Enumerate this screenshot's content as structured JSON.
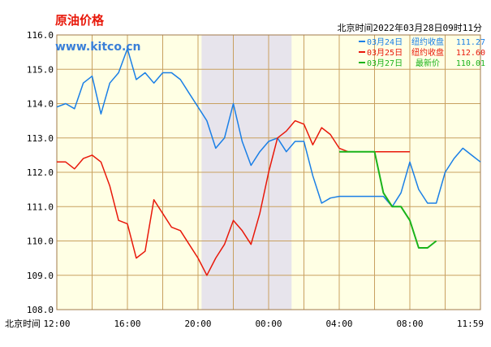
{
  "header": {
    "title": "原油价格",
    "watermark": "www.kitco.cn",
    "timestamp": "北京时间2022年03月28日09时11分"
  },
  "colors": {
    "background": "#ffffff",
    "plot_background": "#ffffe4",
    "grid": "#c8a060",
    "shade": "#e7e4ec",
    "title": "#e8180a",
    "watermark": "#3a7fd8",
    "march24": "#1a7fe6",
    "march25": "#e8180a",
    "march27": "#1ab31a"
  },
  "chart_data": {
    "type": "line",
    "title": "原油价格",
    "xlabel": "北京时间",
    "x_tick_labels": [
      "12:00",
      "16:00",
      "20:00",
      "00:00",
      "04:00",
      "08:00",
      "11:59"
    ],
    "x_tick_hours": [
      0,
      4,
      8,
      12,
      16,
      20,
      24
    ],
    "y_ticks": [
      "116.0",
      "115.0",
      "114.0",
      "113.0",
      "112.0",
      "111.0",
      "110.0",
      "109.0",
      "108.0"
    ],
    "ylim": [
      108.0,
      116.0
    ],
    "grid": true,
    "legend_position": "top-right",
    "shaded_band": [
      8.2,
      13.3
    ],
    "series": [
      {
        "name": "03月24日",
        "label": "纽约收盘",
        "value": "111.27",
        "color": "#1a7fe6",
        "x": [
          0.0,
          0.5,
          1.0,
          1.5,
          2.0,
          2.5,
          3.0,
          3.5,
          4.0,
          4.5,
          5.0,
          5.5,
          6.0,
          6.5,
          7.0,
          7.5,
          8.0,
          8.5,
          9.0,
          9.5,
          10.0,
          10.5,
          11.0,
          11.5,
          12.0,
          12.5,
          13.0,
          13.5,
          14.0,
          14.5,
          15.0,
          15.5,
          16.0,
          16.5,
          17.0,
          17.5,
          18.0,
          18.5,
          19.0,
          19.5,
          20.0,
          20.5,
          21.0,
          21.5,
          22.0,
          22.5,
          23.0,
          23.5,
          24.0
        ],
        "values": [
          113.9,
          114.0,
          113.85,
          114.6,
          114.8,
          113.7,
          114.6,
          114.9,
          115.6,
          114.7,
          114.9,
          114.6,
          114.9,
          114.9,
          114.7,
          114.3,
          113.9,
          113.5,
          112.7,
          113.0,
          114.0,
          112.9,
          112.2,
          112.6,
          112.9,
          113.0,
          112.6,
          112.9,
          112.9,
          111.9,
          111.1,
          111.25,
          111.3,
          111.3,
          111.3,
          111.3,
          111.3,
          111.3,
          111.0,
          111.4,
          112.3,
          111.5,
          111.1,
          111.1,
          112.0,
          112.4,
          112.7,
          112.5,
          112.3
        ]
      },
      {
        "name": "03月25日",
        "label": "纽约收盘",
        "value": "112.60",
        "color": "#e8180a",
        "x": [
          0.0,
          0.5,
          1.0,
          1.5,
          2.0,
          2.5,
          3.0,
          3.5,
          4.0,
          4.5,
          5.0,
          5.5,
          6.0,
          6.5,
          7.0,
          7.5,
          8.0,
          8.5,
          9.0,
          9.5,
          10.0,
          10.5,
          11.0,
          11.5,
          12.0,
          12.5,
          13.0,
          13.5,
          14.0,
          14.5,
          15.0,
          15.5,
          16.0,
          16.5,
          17.0,
          18.0,
          19.0,
          20.0
        ],
        "values": [
          112.3,
          112.3,
          112.1,
          112.4,
          112.5,
          112.3,
          111.6,
          110.6,
          110.5,
          109.5,
          109.7,
          111.2,
          110.8,
          110.4,
          110.3,
          109.9,
          109.5,
          109.0,
          109.5,
          109.9,
          110.6,
          110.3,
          109.9,
          110.8,
          112.0,
          113.0,
          113.2,
          113.5,
          113.4,
          112.8,
          113.3,
          113.1,
          112.7,
          112.6,
          112.6,
          112.6,
          112.6,
          112.6
        ]
      },
      {
        "name": "03月27日",
        "label": "最新价",
        "value": "110.01",
        "color": "#1ab31a",
        "x": [
          16.0,
          16.5,
          17.0,
          17.5,
          18.0,
          18.5,
          19.0,
          19.5,
          20.0,
          20.5,
          21.0,
          21.5
        ],
        "values": [
          112.6,
          112.6,
          112.6,
          112.6,
          112.6,
          111.4,
          111.0,
          111.0,
          110.6,
          109.8,
          109.8,
          110.0
        ]
      }
    ]
  }
}
